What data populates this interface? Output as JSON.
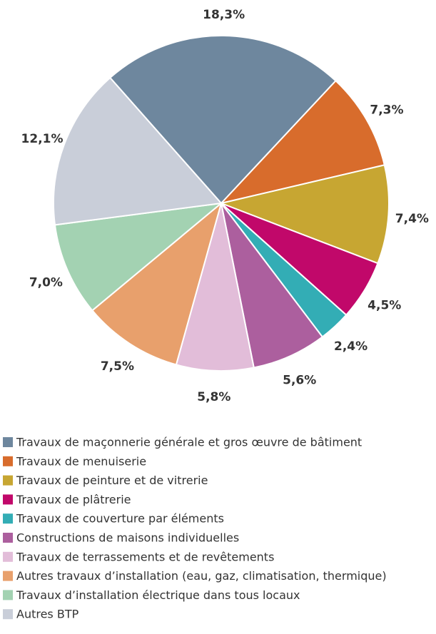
{
  "chart_data": {
    "type": "pie",
    "categories": [
      "Travaux de maçonnerie générale et gros œuvre de bâtiment",
      "Travaux de menuiserie",
      "Travaux de peinture et de vitrerie",
      "Travaux de plâtrerie",
      "Travaux de couverture par éléments",
      "Constructions de maisons individuelles",
      "Travaux de terrassements et de revêtements",
      "Autres travaux d’installation (eau, gaz, climatisation, thermique)",
      "Travaux d’installation électrique dans tous locaux",
      "Autres BTP"
    ],
    "values": [
      18.3,
      7.3,
      7.4,
      4.5,
      2.4,
      5.6,
      5.8,
      7.5,
      7.0,
      12.1
    ],
    "value_labels": [
      "18,3%",
      "7,3%",
      "7,4%",
      "4,5%",
      "2,4%",
      "5,6%",
      "5,8%",
      "7,5%",
      "7,0%",
      "12,1%"
    ],
    "colors": [
      "#6e879e",
      "#d86c2c",
      "#c7a632",
      "#c1086a",
      "#33adb5",
      "#ac5f9e",
      "#e2bdd9",
      "#e8a06c",
      "#a3d2b2",
      "#c9ced9"
    ],
    "legend": "bottom"
  }
}
